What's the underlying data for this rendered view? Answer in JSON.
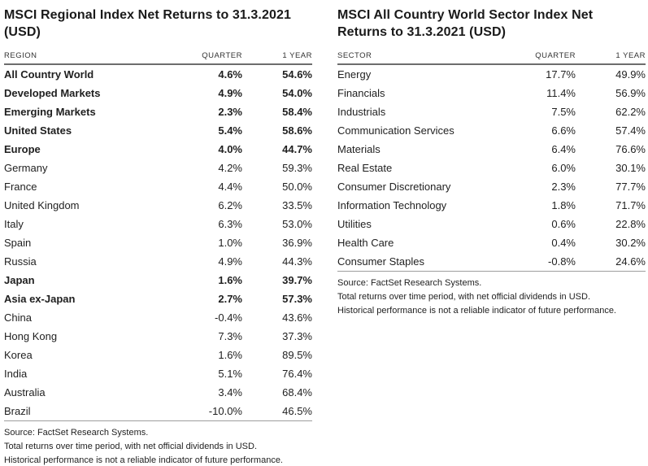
{
  "left_table": {
    "title_lines": [
      "MSCI Regional Index Net Returns to 31.3.2021",
      "(USD)"
    ],
    "columns": [
      "REGION",
      "QUARTER",
      "1 YEAR"
    ],
    "rows": [
      {
        "label": "All Country World",
        "quarter": "4.6%",
        "year": "54.6%",
        "bold": true
      },
      {
        "label": "Developed Markets",
        "quarter": "4.9%",
        "year": "54.0%",
        "bold": true
      },
      {
        "label": "Emerging Markets",
        "quarter": "2.3%",
        "year": "58.4%",
        "bold": true
      },
      {
        "label": "United States",
        "quarter": "5.4%",
        "year": "58.6%",
        "bold": true
      },
      {
        "label": "Europe",
        "quarter": "4.0%",
        "year": "44.7%",
        "bold": true
      },
      {
        "label": "Germany",
        "quarter": "4.2%",
        "year": "59.3%",
        "bold": false
      },
      {
        "label": "France",
        "quarter": "4.4%",
        "year": "50.0%",
        "bold": false
      },
      {
        "label": "United Kingdom",
        "quarter": "6.2%",
        "year": "33.5%",
        "bold": false
      },
      {
        "label": "Italy",
        "quarter": "6.3%",
        "year": "53.0%",
        "bold": false
      },
      {
        "label": "Spain",
        "quarter": "1.0%",
        "year": "36.9%",
        "bold": false
      },
      {
        "label": "Russia",
        "quarter": "4.9%",
        "year": "44.3%",
        "bold": false
      },
      {
        "label": "Japan",
        "quarter": "1.6%",
        "year": "39.7%",
        "bold": true
      },
      {
        "label": "Asia ex-Japan",
        "quarter": "2.7%",
        "year": "57.3%",
        "bold": true
      },
      {
        "label": "China",
        "quarter": "-0.4%",
        "year": "43.6%",
        "bold": false
      },
      {
        "label": "Hong Kong",
        "quarter": "7.3%",
        "year": "37.3%",
        "bold": false
      },
      {
        "label": "Korea",
        "quarter": "1.6%",
        "year": "89.5%",
        "bold": false
      },
      {
        "label": "India",
        "quarter": "5.1%",
        "year": "76.4%",
        "bold": false
      },
      {
        "label": "Australia",
        "quarter": "3.4%",
        "year": "68.4%",
        "bold": false
      },
      {
        "label": "Brazil",
        "quarter": "-10.0%",
        "year": "46.5%",
        "bold": false
      }
    ],
    "footnotes": [
      "Source: FactSet Research Systems.",
      "Total returns over time period, with net official dividends in USD.",
      "Historical performance is not a reliable indicator of future performance."
    ]
  },
  "right_table": {
    "title_lines": [
      "MSCI All Country World Sector Index Net",
      "Returns to 31.3.2021 (USD)"
    ],
    "columns": [
      "SECTOR",
      "QUARTER",
      "1 YEAR"
    ],
    "rows": [
      {
        "label": "Energy",
        "quarter": "17.7%",
        "year": "49.9%",
        "bold": false
      },
      {
        "label": "Financials",
        "quarter": "11.4%",
        "year": "56.9%",
        "bold": false
      },
      {
        "label": "Industrials",
        "quarter": "7.5%",
        "year": "62.2%",
        "bold": false
      },
      {
        "label": "Communication Services",
        "quarter": "6.6%",
        "year": "57.4%",
        "bold": false
      },
      {
        "label": "Materials",
        "quarter": "6.4%",
        "year": "76.6%",
        "bold": false
      },
      {
        "label": "Real Estate",
        "quarter": "6.0%",
        "year": "30.1%",
        "bold": false
      },
      {
        "label": "Consumer Discretionary",
        "quarter": "2.3%",
        "year": "77.7%",
        "bold": false
      },
      {
        "label": "Information Technology",
        "quarter": "1.8%",
        "year": "71.7%",
        "bold": false
      },
      {
        "label": "Utilities",
        "quarter": "0.6%",
        "year": "22.8%",
        "bold": false
      },
      {
        "label": "Health Care",
        "quarter": "0.4%",
        "year": "30.2%",
        "bold": false
      },
      {
        "label": "Consumer Staples",
        "quarter": "-0.8%",
        "year": "24.6%",
        "bold": false
      }
    ],
    "footnotes": [
      "Source: FactSet Research Systems.",
      "Total returns over time period, with net official dividends in USD.",
      "Historical performance is not a reliable indicator of future performance."
    ]
  },
  "colors": {
    "text": "#1f1f1f",
    "header_rule": "#6d6d6d",
    "bottom_rule": "#9e9e9e"
  }
}
